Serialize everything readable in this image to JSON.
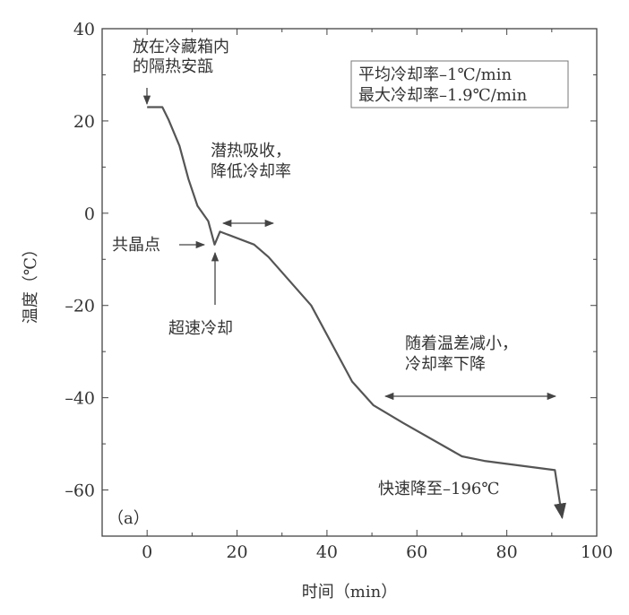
{
  "chart_data": {
    "type": "line",
    "title": "",
    "panel_label": "（a）",
    "xlabel": "时间（min）",
    "ylabel": "温度（℃）",
    "xlim": [
      -10,
      100
    ],
    "ylim": [
      -70,
      40
    ],
    "xticks": [
      0,
      20,
      40,
      60,
      80,
      100
    ],
    "yticks": [
      40,
      20,
      0,
      -20,
      -40,
      -60
    ],
    "grid": false,
    "line_color": "#555555",
    "series": [
      {
        "x": [
          0,
          3.4,
          4.8,
          7.2,
          9.2,
          11.2,
          13.6,
          15,
          16.2,
          23.8,
          27,
          36.5,
          45.6,
          50.3,
          57,
          70,
          75,
          90.7,
          92.3
        ],
        "y": [
          23,
          23,
          20.2,
          14.6,
          7.4,
          1.6,
          -1.7,
          -6.8,
          -4,
          -6.8,
          -9.5,
          -20,
          -36.5,
          -41.6,
          -45.5,
          -52.7,
          -53.7,
          -55.7,
          -66
        ]
      }
    ],
    "legend_box": [
      "平均冷却率–1℃/min",
      "最大冷却率–1.9℃/min"
    ],
    "annotations": {
      "start": [
        "放在冷藏箱内",
        "的隔热安瓿"
      ],
      "latent": [
        "潜热吸收，",
        "降低冷却率"
      ],
      "eutectic": "共晶点",
      "supercool": "超速冷却",
      "decline": [
        "随着温差减小，",
        "冷却率下降"
      ],
      "plunge": "快速降至–196℃"
    }
  }
}
